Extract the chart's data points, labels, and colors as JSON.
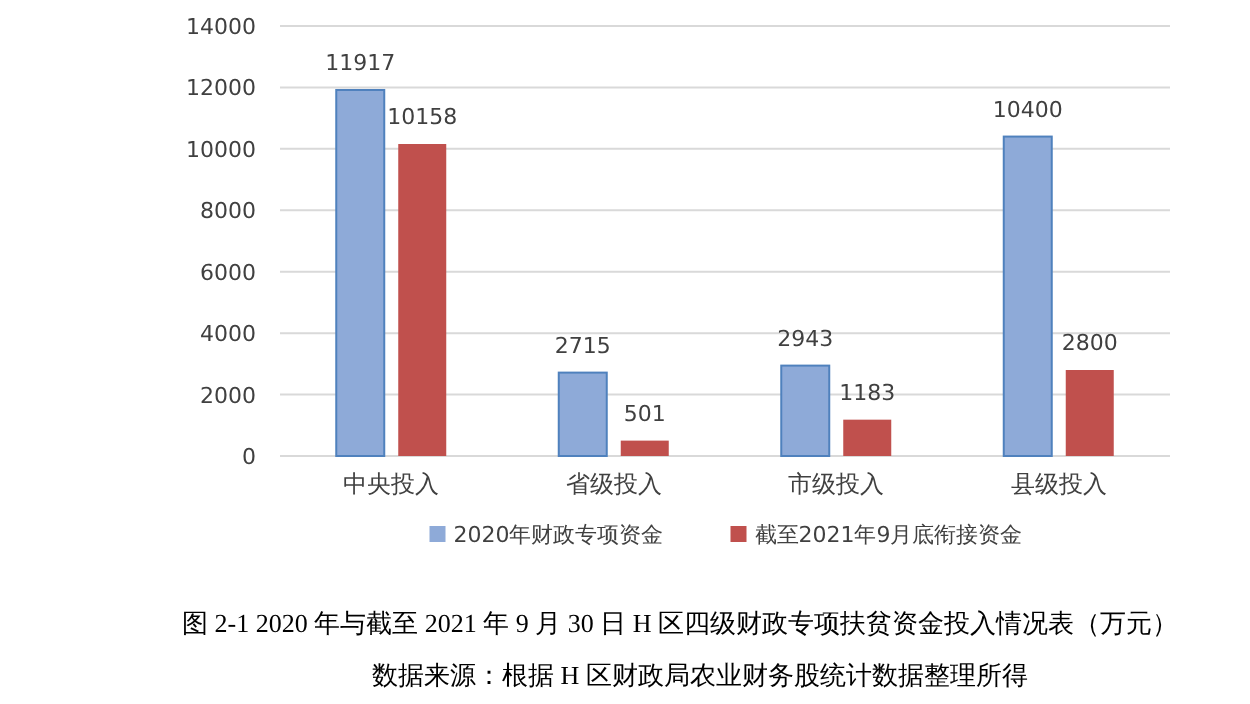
{
  "chart_data": {
    "type": "bar",
    "categories": [
      "中央投入",
      "省级投入",
      "市级投入",
      "县级投入"
    ],
    "series": [
      {
        "name": "2020年财政专项资金",
        "color": "#8eaad8",
        "values": [
          11917,
          2715,
          2943,
          10400
        ]
      },
      {
        "name": "截至2021年9月底衔接资金",
        "color": "#c0504d",
        "values": [
          10158,
          501,
          1183,
          2800
        ]
      }
    ],
    "ylim": [
      0,
      14000
    ],
    "yticks": [
      0,
      2000,
      4000,
      6000,
      8000,
      10000,
      12000,
      14000
    ],
    "grid": "y",
    "legend": "bottom",
    "data_labels": true,
    "annotations": [
      "图 2-1  2020 年与截至 2021 年 9 月 30 日 H 区四级财政专项扶贫资金投入情况表（万元）",
      "数据来源：根据 H 区财政局农业财务股统计数据整理所得"
    ]
  }
}
